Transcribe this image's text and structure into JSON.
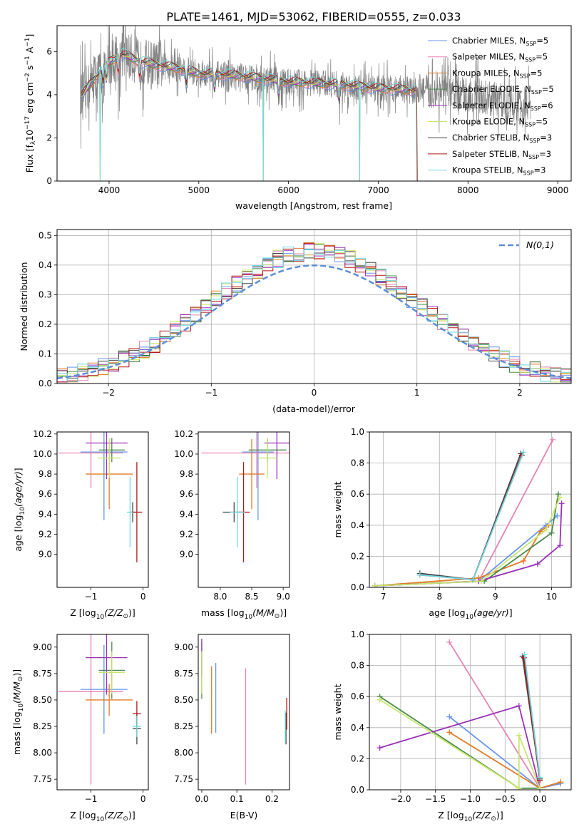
{
  "title": "PLATE=1461, MJD=53062, FIBERID=0555, z=0.033",
  "models": [
    {
      "name": "Chabrier MILES",
      "nssp": "5",
      "color": "#6495ed"
    },
    {
      "name": "Salpeter MILES",
      "nssp": "5",
      "color": "#e882b4"
    },
    {
      "name": "Kroupa MILES",
      "nssp": "5",
      "color": "#e07b28"
    },
    {
      "name": "Chabrier ELODIE",
      "nssp": "5",
      "color": "#4a8a4a"
    },
    {
      "name": "Salpeter ELODIE",
      "nssp": "6",
      "color": "#9b30b8"
    },
    {
      "name": "Kroupa ELODIE",
      "nssp": "5",
      "color": "#c8e66e"
    },
    {
      "name": "Chabrier STELIB",
      "nssp": "3",
      "color": "#444444"
    },
    {
      "name": "Salpeter STELIB",
      "nssp": "3",
      "color": "#b51818"
    },
    {
      "name": "Kroupa STELIB",
      "nssp": "3",
      "color": "#6fd7df"
    }
  ],
  "nssp_prefix": "N",
  "nssp_sub": "SSP",
  "chart_data": [
    {
      "type": "line",
      "id": "spectrum",
      "xlabel": "wavelength [Angstrom, rest frame]",
      "ylabel": "Flux [f",
      "xlim": [
        3420,
        9150
      ],
      "ylim": [
        0,
        7.2
      ],
      "xticks": [
        4000,
        5000,
        6000,
        7000,
        8000,
        9000
      ],
      "yticks": [
        0,
        2,
        4,
        6
      ],
      "grid": false,
      "legend": "top-right",
      "continuum_knots": [
        [
          3700,
          4.0
        ],
        [
          3850,
          4.8
        ],
        [
          4000,
          5.5
        ],
        [
          4150,
          5.9
        ],
        [
          4300,
          5.6
        ],
        [
          4500,
          5.4
        ],
        [
          4800,
          5.2
        ],
        [
          5000,
          5.0
        ],
        [
          5400,
          4.9
        ],
        [
          6000,
          4.6
        ],
        [
          6500,
          4.5
        ],
        [
          7000,
          4.3
        ],
        [
          7400,
          4.2
        ],
        [
          8000,
          4.0
        ],
        [
          8700,
          3.5
        ]
      ],
      "absorption_lines": [
        3934,
        3969,
        4102,
        4340,
        4861,
        5175,
        5890,
        6563
      ],
      "artifact_spikes": [
        [
          3900,
          0
        ],
        [
          5720,
          0
        ],
        [
          6790,
          0
        ],
        [
          7430,
          0
        ]
      ],
      "model_end": 7430
    },
    {
      "type": "line",
      "id": "residuals",
      "xlabel": "(data-model)/error",
      "ylabel": "Normed distribution",
      "xlim": [
        -2.5,
        2.5
      ],
      "ylim": [
        0,
        0.52
      ],
      "xticks": [
        -2,
        -1,
        0,
        1,
        2
      ],
      "yticks": [
        0.0,
        0.1,
        0.2,
        0.3,
        0.4,
        0.5
      ],
      "grid": true,
      "legend": "top-right",
      "reference_curve": "N(0,1)",
      "bin_width": 0.1
    },
    {
      "type": "scatter",
      "id": "age-vs-Z",
      "xlabel": "Z [log",
      "ylabel": "age  [log",
      "xlim": [
        -1.65,
        0.1
      ],
      "ylim": [
        8.67,
        10.22
      ],
      "xticks": [
        -1,
        0
      ],
      "yticks": [
        9.0,
        9.2,
        9.4,
        9.6,
        9.8,
        10.0,
        10.2
      ],
      "points": [
        {
          "m": 0,
          "x": -0.75,
          "xerr": 0.45,
          "y": 10.02,
          "yerr": 0.68
        },
        {
          "m": 1,
          "x": -1.0,
          "xerr": 0.62,
          "y": 10.01,
          "yerr": 0.35
        },
        {
          "m": 2,
          "x": -0.65,
          "xerr": 0.45,
          "y": 9.8,
          "yerr": 0.35
        },
        {
          "m": 3,
          "x": -0.6,
          "xerr": 0.25,
          "y": 10.04,
          "yerr": 0.12
        },
        {
          "m": 4,
          "x": -0.7,
          "xerr": 0.4,
          "y": 10.11,
          "yerr": 0.36
        },
        {
          "m": 5,
          "x": -0.65,
          "xerr": 0.22,
          "y": 9.96,
          "yerr": 0.2
        },
        {
          "m": 6,
          "x": -0.2,
          "xerr": 0.05,
          "y": 9.42,
          "yerr": 0.1
        },
        {
          "m": 7,
          "x": -0.12,
          "xerr": 0.1,
          "y": 9.42,
          "yerr": 0.5
        },
        {
          "m": 8,
          "x": -0.25,
          "xerr": 0.06,
          "y": 9.42,
          "yerr": 0.35
        }
      ]
    },
    {
      "type": "scatter",
      "id": "age-vs-mass",
      "xlabel": "mass [log",
      "ylabel": "",
      "xlim": [
        7.65,
        9.1
      ],
      "ylim": [
        8.67,
        10.22
      ],
      "xticks": [
        8.0,
        8.5,
        9.0
      ],
      "yticks": [
        9.0,
        9.2,
        9.4,
        9.6,
        9.8,
        10.0,
        10.2
      ],
      "points": [
        {
          "m": 0,
          "x": 8.6,
          "xerr": 0.25,
          "y": 10.02,
          "yerr": 0.68
        },
        {
          "m": 1,
          "x": 8.58,
          "xerr": 0.88,
          "y": 10.01,
          "yerr": 0.35
        },
        {
          "m": 2,
          "x": 8.5,
          "xerr": 0.2,
          "y": 9.8,
          "yerr": 0.35
        },
        {
          "m": 3,
          "x": 8.75,
          "xerr": 0.3,
          "y": 10.04,
          "yerr": 0.12
        },
        {
          "m": 4,
          "x": 8.9,
          "xerr": 0.2,
          "y": 10.11,
          "yerr": 0.36
        },
        {
          "m": 5,
          "x": 8.75,
          "xerr": 0.15,
          "y": 9.96,
          "yerr": 0.2
        },
        {
          "m": 6,
          "x": 8.22,
          "xerr": 0.18,
          "y": 9.42,
          "yerr": 0.1
        },
        {
          "m": 7,
          "x": 8.37,
          "xerr": 0.1,
          "y": 9.42,
          "yerr": 0.5
        },
        {
          "m": 8,
          "x": 8.27,
          "xerr": 0.12,
          "y": 9.42,
          "yerr": 0.35
        }
      ]
    },
    {
      "type": "line",
      "id": "weight-vs-age",
      "xlabel": "age  [log",
      "ylabel": "mass weight",
      "xlim": [
        6.75,
        10.35
      ],
      "ylim": [
        0,
        1.0
      ],
      "xticks": [
        7,
        8,
        9,
        10
      ],
      "yticks": [
        0.0,
        0.2,
        0.4,
        0.6,
        0.8,
        1.0
      ],
      "grid": true,
      "series": [
        {
          "m": 0,
          "x": [
            6.85,
            8.7,
            9.9,
            10.1
          ],
          "y": [
            0.01,
            0.04,
            0.4,
            0.46
          ]
        },
        {
          "m": 1,
          "x": [
            6.85,
            8.7,
            10.02
          ],
          "y": [
            0.01,
            0.04,
            0.95
          ]
        },
        {
          "m": 2,
          "x": [
            6.85,
            8.7,
            9.5,
            9.8,
            9.95
          ],
          "y": [
            0.01,
            0.06,
            0.17,
            0.36,
            0.4
          ]
        },
        {
          "m": 3,
          "x": [
            6.85,
            8.8,
            10.0,
            10.12
          ],
          "y": [
            0.01,
            0.04,
            0.35,
            0.6
          ]
        },
        {
          "m": 4,
          "x": [
            6.85,
            8.7,
            9.75,
            10.15,
            10.18
          ],
          "y": [
            0.01,
            0.04,
            0.15,
            0.27,
            0.54
          ]
        },
        {
          "m": 5,
          "x": [
            6.85,
            8.75,
            9.9,
            10.15
          ],
          "y": [
            0.01,
            0.04,
            0.37,
            0.58
          ]
        },
        {
          "m": 6,
          "x": [
            7.65,
            8.6,
            9.45
          ],
          "y": [
            0.09,
            0.05,
            0.86
          ]
        },
        {
          "m": 7,
          "x": [
            7.65,
            8.6,
            9.47
          ],
          "y": [
            0.08,
            0.05,
            0.85
          ]
        },
        {
          "m": 8,
          "x": [
            7.65,
            8.6,
            9.5
          ],
          "y": [
            0.08,
            0.05,
            0.87
          ]
        }
      ]
    },
    {
      "type": "scatter",
      "id": "mass-vs-Z",
      "xlabel": "Z [log",
      "ylabel": "mass [log",
      "xlim": [
        -1.65,
        0.1
      ],
      "ylim": [
        7.65,
        9.12
      ],
      "xticks": [
        -1,
        0
      ],
      "yticks": [
        7.75,
        8.0,
        8.25,
        8.5,
        8.75,
        9.0
      ],
      "points": [
        {
          "m": 0,
          "x": -0.75,
          "xerr": 0.45,
          "y": 8.6,
          "yerr": 0.42
        },
        {
          "m": 1,
          "x": -1.0,
          "xerr": 0.62,
          "y": 8.58,
          "yerr": 0.88
        },
        {
          "m": 2,
          "x": -0.65,
          "xerr": 0.45,
          "y": 8.5,
          "yerr": 0.15
        },
        {
          "m": 3,
          "x": -0.6,
          "xerr": 0.25,
          "y": 8.78,
          "yerr": 0.27
        },
        {
          "m": 4,
          "x": -0.7,
          "xerr": 0.4,
          "y": 8.9,
          "yerr": 0.35
        },
        {
          "m": 5,
          "x": -0.6,
          "xerr": 0.25,
          "y": 8.76,
          "yerr": 0.2
        },
        {
          "m": 6,
          "x": -0.12,
          "xerr": 0.08,
          "y": 8.23,
          "yerr": 0.15
        },
        {
          "m": 7,
          "x": -0.12,
          "xerr": 0.08,
          "y": 8.37,
          "yerr": 0.12
        },
        {
          "m": 8,
          "x": -0.12,
          "xerr": 0.08,
          "y": 8.25,
          "yerr": 0.1
        }
      ]
    },
    {
      "type": "scatter",
      "id": "mass-vs-EBV",
      "xlabel": "E(B-V)",
      "ylabel": "",
      "xlim": [
        -0.01,
        0.25
      ],
      "ylim": [
        7.65,
        9.12
      ],
      "xticks": [
        0.0,
        0.1,
        0.2
      ],
      "yticks": [
        7.75,
        8.0,
        8.25,
        8.5,
        8.75,
        9.0
      ],
      "points": [
        {
          "m": 0,
          "x": 0.04,
          "xerr": 0,
          "y": 8.52,
          "yerr": 0.33
        },
        {
          "m": 1,
          "x": 0.125,
          "xerr": 0,
          "y": 8.25,
          "yerr": 0.55
        },
        {
          "m": 2,
          "x": 0.028,
          "xerr": 0,
          "y": 8.5,
          "yerr": 0.32
        },
        {
          "m": 3,
          "x": 0.0,
          "xerr": 0,
          "y": 8.78,
          "yerr": 0.27
        },
        {
          "m": 4,
          "x": 0.0,
          "xerr": 0,
          "y": 8.9,
          "yerr": 0.18
        },
        {
          "m": 5,
          "x": 0.0,
          "xerr": 0,
          "y": 8.76,
          "yerr": 0.2
        },
        {
          "m": 6,
          "x": 0.24,
          "xerr": 0,
          "y": 8.23,
          "yerr": 0.15
        },
        {
          "m": 7,
          "x": 0.242,
          "xerr": 0,
          "y": 8.37,
          "yerr": 0.15
        },
        {
          "m": 8,
          "x": 0.238,
          "xerr": 0,
          "y": 8.25,
          "yerr": 0.15
        }
      ]
    },
    {
      "type": "line",
      "id": "weight-vs-Z",
      "xlabel": "Z [log",
      "ylabel": "mass weight",
      "xlim": [
        -2.45,
        0.45
      ],
      "ylim": [
        0,
        1.0
      ],
      "xticks": [
        -2.0,
        -1.5,
        -1.0,
        -0.5,
        0.0
      ],
      "yticks": [
        0.0,
        0.2,
        0.4,
        0.6,
        0.8,
        1.0
      ],
      "grid": true,
      "series": [
        {
          "m": 0,
          "x": [
            -1.3,
            0.0,
            0.3
          ],
          "y": [
            0.47,
            0.01,
            0.04
          ]
        },
        {
          "m": 1,
          "x": [
            -1.3,
            0.0
          ],
          "y": [
            0.95,
            0.01
          ]
        },
        {
          "m": 2,
          "x": [
            -1.3,
            0.0,
            0.3
          ],
          "y": [
            0.37,
            0.01,
            0.05
          ]
        },
        {
          "m": 3,
          "x": [
            -2.3,
            -0.3,
            0.0
          ],
          "y": [
            0.6,
            0.01,
            0.01
          ]
        },
        {
          "m": 4,
          "x": [
            -2.3,
            -0.3,
            0.0
          ],
          "y": [
            0.27,
            0.54,
            0.01
          ]
        },
        {
          "m": 5,
          "x": [
            -2.3,
            -0.3,
            -0.3,
            0.0
          ],
          "y": [
            0.58,
            0.01,
            0.35,
            0.01
          ]
        },
        {
          "m": 6,
          "x": [
            -0.25,
            0.0
          ],
          "y": [
            0.86,
            0.07
          ]
        },
        {
          "m": 7,
          "x": [
            -0.23,
            0.0
          ],
          "y": [
            0.85,
            0.06
          ]
        },
        {
          "m": 8,
          "x": [
            -0.22,
            0.0
          ],
          "y": [
            0.87,
            0.08
          ]
        }
      ]
    }
  ]
}
